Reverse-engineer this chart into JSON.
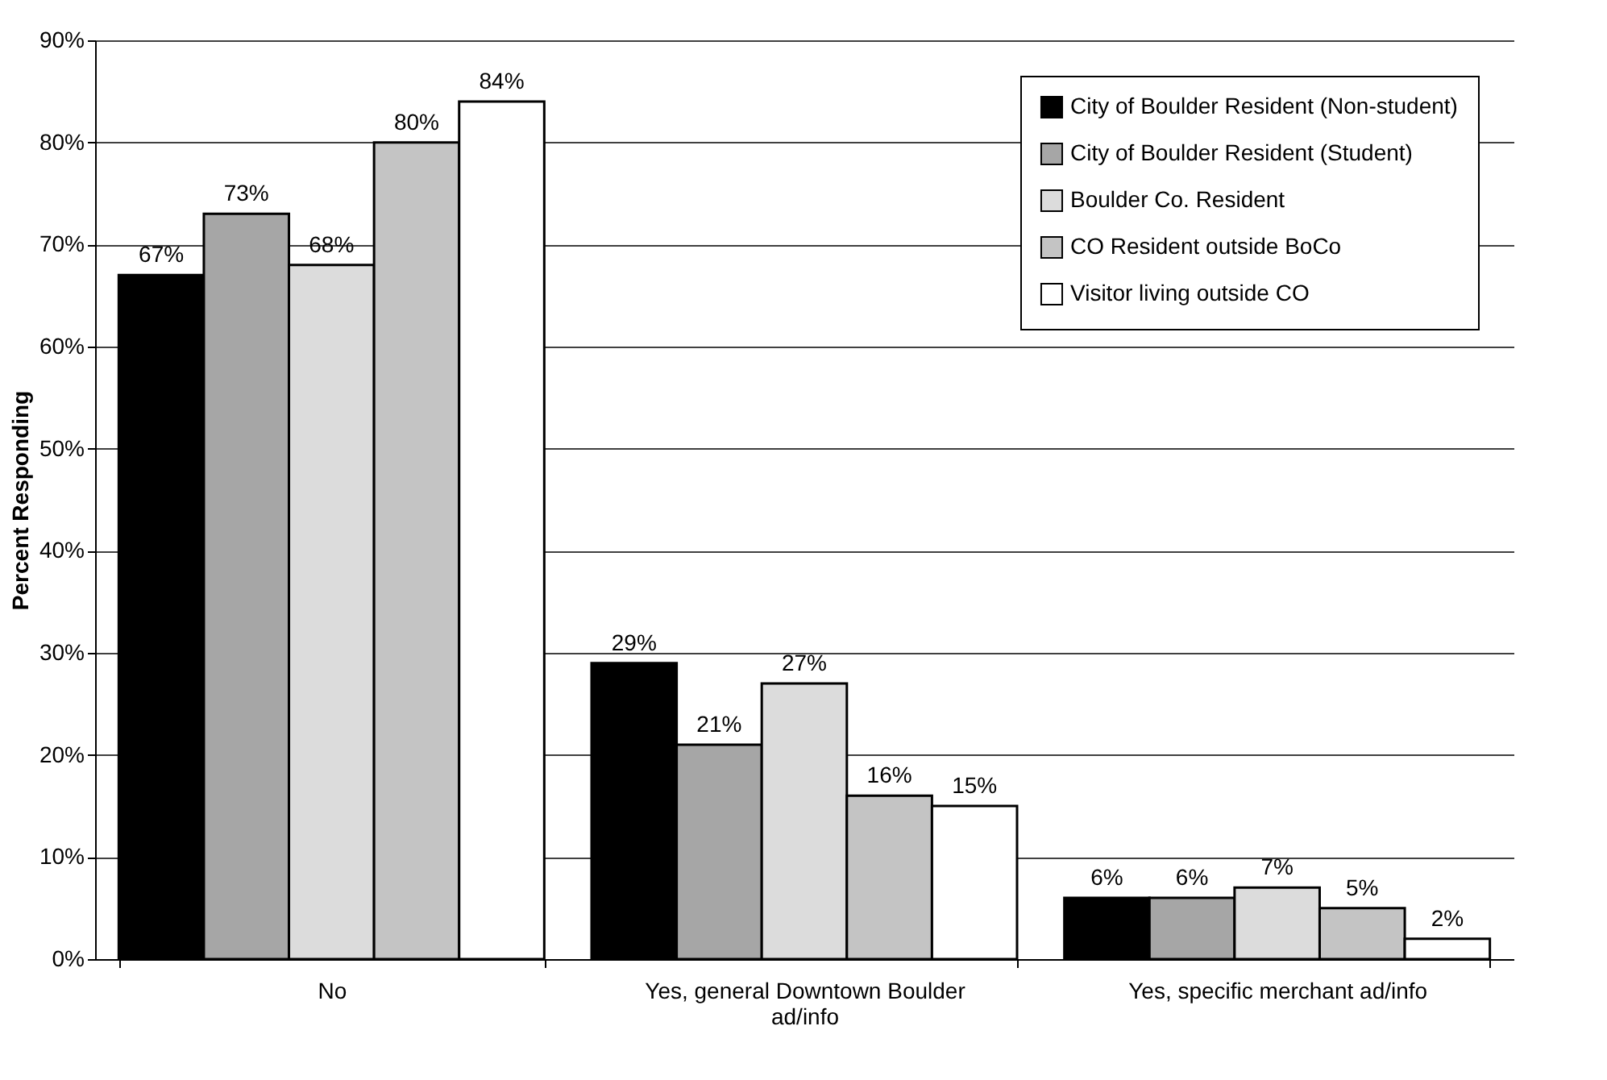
{
  "chart_data": {
    "type": "bar",
    "ylabel": "Percent Responding",
    "categories": [
      "No",
      "Yes, general Downtown Boulder ad/info",
      "Yes, specific merchant ad/info"
    ],
    "series": [
      {
        "name": "City of Boulder Resident (Non-student)",
        "color": "#000000",
        "values": [
          67,
          29,
          6
        ],
        "value_labels": [
          "67%",
          "29%",
          "6%"
        ]
      },
      {
        "name": "City of Boulder Resident (Student)",
        "color": "#a6a6a6",
        "values": [
          73,
          21,
          6
        ],
        "value_labels": [
          "73%",
          "21%",
          "6%"
        ]
      },
      {
        "name": "Boulder Co. Resident",
        "color": "#dcdcdc",
        "values": [
          68,
          27,
          7
        ],
        "value_labels": [
          "68%",
          "27%",
          "7%"
        ]
      },
      {
        "name": "CO Resident outside BoCo",
        "color": "#c4c4c4",
        "values": [
          80,
          16,
          5
        ],
        "value_labels": [
          "80%",
          "16%",
          "5%"
        ]
      },
      {
        "name": "Visitor living outside CO",
        "color": "#ffffff",
        "values": [
          84,
          15,
          2
        ],
        "value_labels": [
          "84%",
          "15%",
          "2%"
        ]
      }
    ],
    "ylim": [
      0,
      90
    ],
    "yticks": [
      {
        "value": 0,
        "label": "0%"
      },
      {
        "value": 10,
        "label": "10%"
      },
      {
        "value": 20,
        "label": "20%"
      },
      {
        "value": 30,
        "label": "30%"
      },
      {
        "value": 40,
        "label": "40%"
      },
      {
        "value": 50,
        "label": "50%"
      },
      {
        "value": 60,
        "label": "60%"
      },
      {
        "value": 70,
        "label": "70%"
      },
      {
        "value": 80,
        "label": "80%"
      },
      {
        "value": 90,
        "label": "90%"
      }
    ],
    "grid": "y",
    "legend": "top right"
  }
}
